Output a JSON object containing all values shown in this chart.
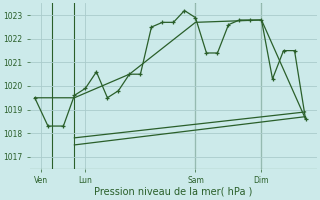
{
  "title": "Pression niveau de la mer( hPa )",
  "bg_color": "#cceaea",
  "grid_color": "#aacccc",
  "line_color": "#2a5f2a",
  "ylim": [
    1016.5,
    1023.5
  ],
  "yticks": [
    1017,
    1018,
    1019,
    1020,
    1021,
    1022,
    1023
  ],
  "day_labels": [
    "Ven",
    "Lun",
    "Sam",
    "Dim"
  ],
  "day_positions": [
    0.5,
    2.5,
    7.5,
    10.5
  ],
  "xlim": [
    0,
    13
  ],
  "vline_x": [
    1,
    2,
    7.5,
    10.5
  ],
  "series1_x": [
    0.2,
    0.8,
    1.5,
    2.0,
    2.5,
    3.0,
    3.5,
    4.0,
    4.5,
    5.0,
    5.5,
    6.0,
    6.5,
    7.0,
    7.5,
    8.0,
    8.5,
    9.0,
    9.5,
    10.0,
    10.5,
    11.0,
    11.5,
    12.0,
    12.5
  ],
  "series1_y": [
    1019.5,
    1018.3,
    1018.3,
    1019.6,
    1019.9,
    1020.6,
    1019.5,
    1019.8,
    1020.5,
    1020.5,
    1022.5,
    1022.7,
    1022.7,
    1023.2,
    1022.9,
    1021.4,
    1021.4,
    1022.6,
    1022.8,
    1022.8,
    1022.8,
    1020.3,
    1021.5,
    1021.5,
    1018.6
  ],
  "series2_x": [
    0.2,
    2.0,
    4.5,
    7.5,
    10.5,
    12.5
  ],
  "series2_y": [
    1019.5,
    1019.5,
    1020.5,
    1022.7,
    1022.8,
    1018.6
  ],
  "series3_x": [
    2.0,
    12.5
  ],
  "series3_y": [
    1017.5,
    1018.7
  ],
  "series4_x": [
    2.0,
    12.5
  ],
  "series4_y": [
    1017.8,
    1018.9
  ],
  "vlines": [
    1,
    2,
    7.5,
    10.5
  ]
}
